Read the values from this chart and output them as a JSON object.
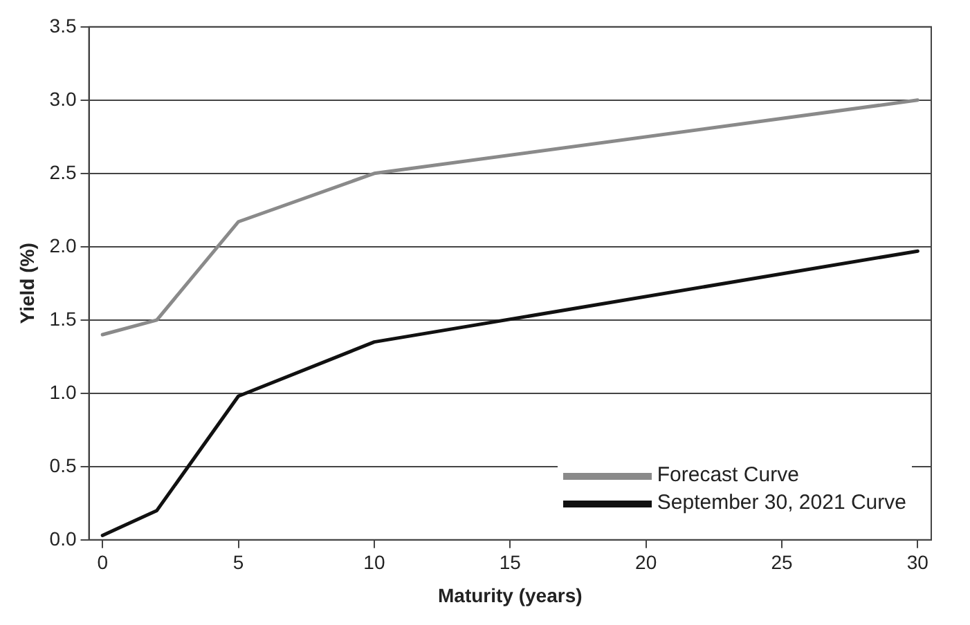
{
  "chart_data": {
    "type": "line",
    "xlabel": "Maturity (years)",
    "ylabel": "Yield (%)",
    "x": [
      0,
      2,
      5,
      10,
      30
    ],
    "series": [
      {
        "name": "Forecast Curve",
        "color": "#8a8a8a",
        "values": [
          1.4,
          1.5,
          2.17,
          2.5,
          3.0
        ]
      },
      {
        "name": "September 30, 2021 Curve",
        "color": "#111111",
        "values": [
          0.03,
          0.2,
          0.98,
          1.35,
          1.97
        ]
      }
    ],
    "xlim": [
      -0.5,
      30.5
    ],
    "xticks": [
      0,
      5,
      10,
      15,
      20,
      25,
      30
    ],
    "ylim": [
      0,
      3.5
    ],
    "yticks": [
      {
        "value": 0,
        "label": "0.0"
      },
      0.5,
      {
        "value": 1,
        "label": "1.0"
      },
      1.5,
      {
        "value": 2,
        "label": "2.0"
      },
      2.5,
      {
        "value": 3,
        "label": "3.0"
      },
      3.5
    ],
    "grid": "y",
    "legend": "bottom right",
    "marker": "none",
    "line_style": "solid"
  }
}
